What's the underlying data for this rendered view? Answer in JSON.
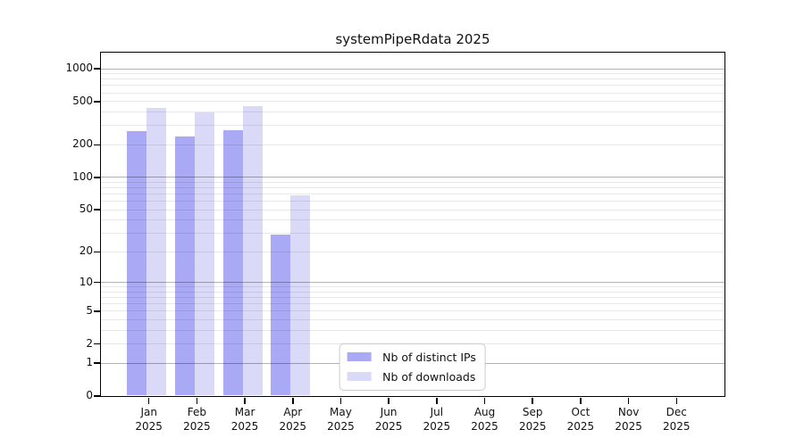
{
  "title": "systemPipeRdata 2025",
  "legend": {
    "items": [
      {
        "label": "Nb of distinct IPs",
        "color": "#a9a9f6"
      },
      {
        "label": "Nb of downloads",
        "color": "#dadaf8"
      }
    ]
  },
  "chart_data": {
    "type": "bar",
    "title": "systemPipeRdata 2025",
    "categories": [
      "Jan 2025",
      "Feb 2025",
      "Mar 2025",
      "Apr 2025",
      "May 2025",
      "Jun 2025",
      "Jul 2025",
      "Aug 2025",
      "Sep 2025",
      "Oct 2025",
      "Nov 2025",
      "Dec 2025"
    ],
    "series": [
      {
        "name": "Nb of distinct IPs",
        "color": "#a9a9f6",
        "values": [
          267,
          237,
          272,
          29,
          0,
          0,
          0,
          0,
          0,
          0,
          0,
          0
        ]
      },
      {
        "name": "Nb of downloads",
        "color": "#dadaf8",
        "values": [
          432,
          392,
          451,
          68,
          0,
          0,
          0,
          0,
          0,
          0,
          0,
          0
        ]
      }
    ],
    "yscale": "log1p",
    "yticks": [
      0,
      1,
      2,
      5,
      10,
      20,
      50,
      100,
      200,
      500,
      1000
    ],
    "ylim": [
      0,
      1400
    ],
    "grid": "horizontal major (1,10,100,1000) dark; log-decade minors light",
    "legend_position": "lower center"
  }
}
